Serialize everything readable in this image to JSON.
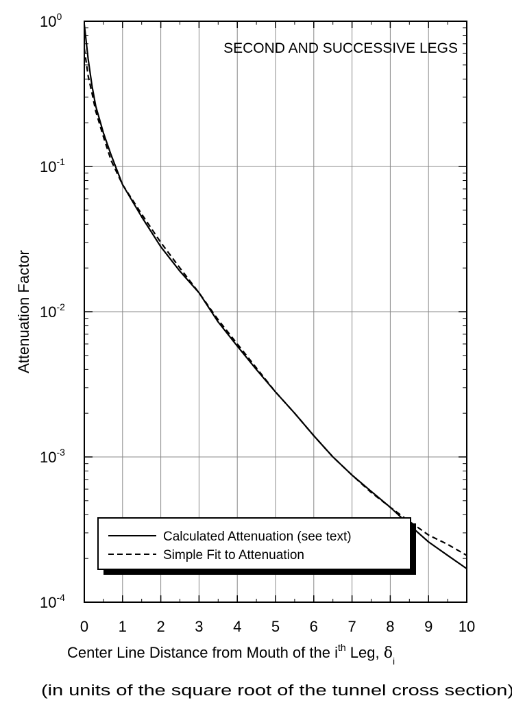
{
  "chart_data": {
    "type": "line",
    "annotation": "SECOND AND SUCCESSIVE LEGS",
    "ylabel": "Attenuation Factor",
    "xlabel": {
      "main": "Center Line Distance from Mouth of the i",
      "sup": "th",
      "tail": " Leg, ",
      "symbol": "δ",
      "sub": "i"
    },
    "xlabel_line2": "(in units of the square root of the tunnel cross section)",
    "xlim": [
      0,
      10
    ],
    "ylim": [
      0.0001,
      1
    ],
    "yscale": "log",
    "grid": true,
    "x_ticks": [
      "0",
      "1",
      "2",
      "3",
      "4",
      "5",
      "6",
      "7",
      "8",
      "9",
      "10"
    ],
    "y_ticks": [
      {
        "base": "10",
        "exp": "-4",
        "value": 0.0001
      },
      {
        "base": "10",
        "exp": "-3",
        "value": 0.001
      },
      {
        "base": "10",
        "exp": "-2",
        "value": 0.01
      },
      {
        "base": "10",
        "exp": "-1",
        "value": 0.1
      },
      {
        "base": "10",
        "exp": "0",
        "value": 1
      }
    ],
    "legend_position": "bottom-left",
    "series": [
      {
        "name": "Calculated Attenuation (see text)",
        "style": "solid",
        "x": [
          0,
          0.1,
          0.2,
          0.3,
          0.5,
          0.7,
          1,
          1.5,
          2,
          2.5,
          3,
          3.5,
          4,
          4.5,
          5,
          5.5,
          6,
          6.5,
          7,
          7.5,
          8,
          8.5,
          9,
          9.5,
          10
        ],
        "y": [
          0.95,
          0.55,
          0.36,
          0.26,
          0.17,
          0.12,
          0.075,
          0.045,
          0.028,
          0.019,
          0.0135,
          0.0085,
          0.0058,
          0.004,
          0.0028,
          0.002,
          0.0014,
          0.001,
          0.00075,
          0.00058,
          0.00045,
          0.00034,
          0.00026,
          0.00021,
          0.00017
        ]
      },
      {
        "name": "Simple Fit to Attenuation",
        "style": "dashed",
        "x": [
          0,
          0.1,
          0.2,
          0.3,
          0.5,
          0.7,
          1,
          1.5,
          2,
          2.5,
          3,
          3.5,
          4,
          4.5,
          5,
          5.5,
          6,
          6.5,
          7,
          7.5,
          8,
          8.5,
          9,
          9.5,
          10
        ],
        "y": [
          0.65,
          0.42,
          0.32,
          0.24,
          0.16,
          0.11,
          0.075,
          0.047,
          0.03,
          0.02,
          0.0135,
          0.0088,
          0.006,
          0.0041,
          0.0028,
          0.002,
          0.0014,
          0.001,
          0.00075,
          0.00057,
          0.00045,
          0.00036,
          0.00029,
          0.00025,
          0.00021
        ]
      }
    ]
  }
}
